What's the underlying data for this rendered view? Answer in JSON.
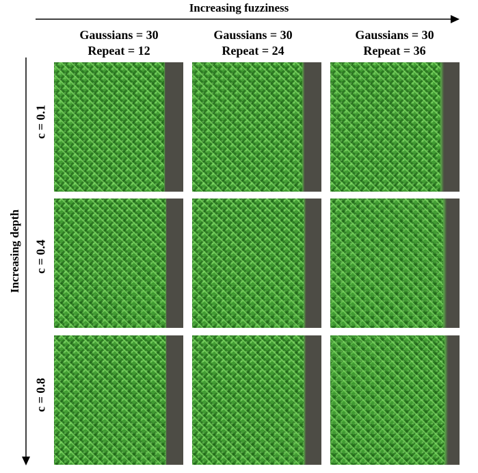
{
  "axes": {
    "horizontal_title": "Increasing fuzziness",
    "vertical_title": "Increasing depth"
  },
  "columns": [
    {
      "line1": "Gaussians = 30",
      "line2": "Repeat = 12"
    },
    {
      "line1": "Gaussians = 30",
      "line2": "Repeat = 24"
    },
    {
      "line1": "Gaussians = 30",
      "line2": "Repeat = 36"
    }
  ],
  "rows": [
    {
      "label": "c = 0.1"
    },
    {
      "label": "c = 0.4"
    },
    {
      "label": "c = 0.8"
    }
  ],
  "colors": {
    "fabric_green": "#3e9a2f",
    "background_gray": "#4d4c45"
  }
}
